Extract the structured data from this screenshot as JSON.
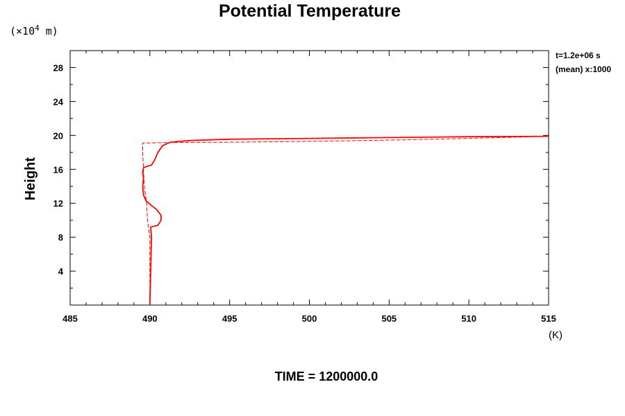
{
  "chart_data": {
    "type": "line",
    "title": "Potential Temperature",
    "xlabel": "",
    "ylabel": "Height",
    "x_unit": "(K)",
    "y_unit_prefix": "(×10",
    "y_unit_exponent": "4",
    "y_unit_suffix": " m)",
    "xlim": [
      485,
      515
    ],
    "ylim": [
      0,
      30
    ],
    "x_ticks": [
      485,
      490,
      495,
      500,
      505,
      510,
      515
    ],
    "x_tick_labels": [
      "485",
      "490",
      "495",
      "500",
      "505",
      "510",
      "515"
    ],
    "y_ticks": [
      4,
      8,
      12,
      16,
      20,
      24,
      28
    ],
    "y_tick_labels": [
      "4",
      "8",
      "12",
      "16",
      "20",
      "24",
      "28"
    ],
    "grid": false,
    "legend": "none",
    "info_line1": "t=1.2e+06 s",
    "info_line2": "(mean) x:1000",
    "time_label": "TIME = 1200000.0",
    "colors": {
      "series": "#ff0000",
      "axes": "#000000"
    },
    "series": [
      {
        "style": "solid",
        "points": [
          [
            490.0,
            0.0
          ],
          [
            490.05,
            4.0
          ],
          [
            490.1,
            8.0
          ],
          [
            490.05,
            9.2
          ],
          [
            490.5,
            9.4
          ],
          [
            490.7,
            10.0
          ],
          [
            490.7,
            10.6
          ],
          [
            490.4,
            11.3
          ],
          [
            490.0,
            11.9
          ],
          [
            489.75,
            12.3
          ],
          [
            489.6,
            13.0
          ],
          [
            489.55,
            14.0
          ],
          [
            489.6,
            15.0
          ],
          [
            489.55,
            15.6
          ],
          [
            489.6,
            16.2
          ],
          [
            489.9,
            16.4
          ],
          [
            490.1,
            16.5
          ],
          [
            490.3,
            17.1
          ],
          [
            490.5,
            18.0
          ],
          [
            490.8,
            18.8
          ],
          [
            491.3,
            19.2
          ],
          [
            492.5,
            19.4
          ],
          [
            495.0,
            19.55
          ],
          [
            500.0,
            19.65
          ],
          [
            505.0,
            19.75
          ],
          [
            510.0,
            19.85
          ],
          [
            515.0,
            19.9
          ]
        ]
      },
      {
        "style": "dashed",
        "points": [
          [
            490.0,
            0.0
          ],
          [
            490.0,
            8.0
          ],
          [
            489.85,
            10.0
          ],
          [
            489.8,
            12.0
          ],
          [
            489.65,
            14.0
          ],
          [
            489.6,
            16.0
          ],
          [
            489.55,
            18.0
          ],
          [
            489.55,
            19.1
          ],
          [
            491.0,
            19.15
          ],
          [
            495.0,
            19.2
          ],
          [
            500.0,
            19.3
          ],
          [
            505.0,
            19.45
          ],
          [
            510.0,
            19.65
          ],
          [
            515.0,
            19.9
          ]
        ]
      }
    ]
  }
}
